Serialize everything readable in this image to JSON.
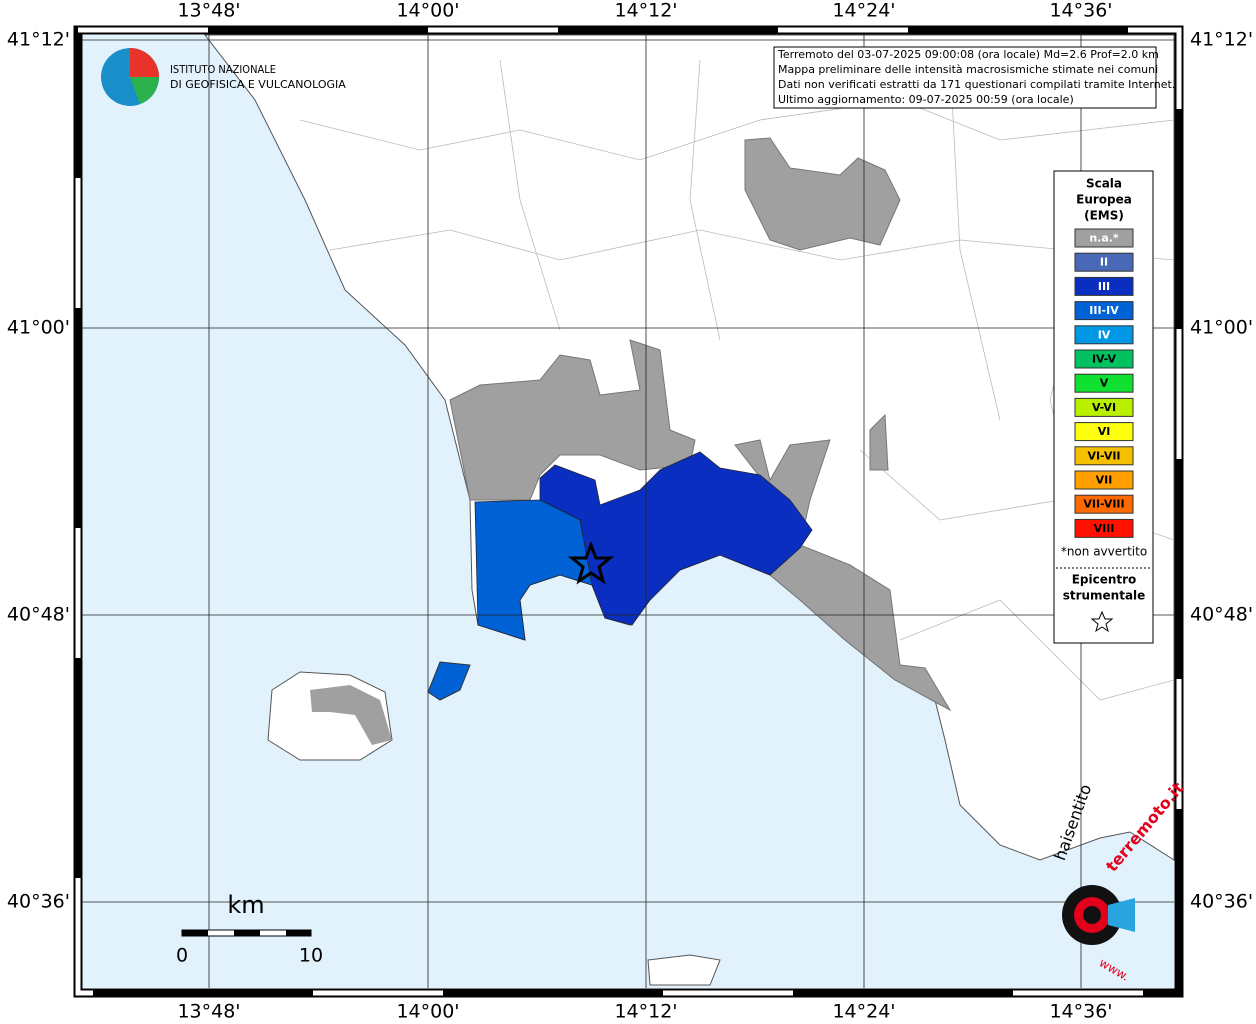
{
  "header": {
    "institute_line1": "ISTITUTO NAZIONALE",
    "institute_line2": "DI GEOFISICA E VULCANOLOGIA"
  },
  "info": {
    "lines": [
      "Terremoto del 03-07-2025 09:00:08 (ora locale) Md=2.6 Prof=2.0 km",
      "Mappa preliminare delle intensità macrosismiche stimate nei comuni",
      "Dati non verificati estratti da 171 questionari compilati tramite Internet.",
      "Ultimo aggiornamento: 09-07-2025 00:59 (ora locale)"
    ]
  },
  "axes": {
    "longitudes": [
      "13°48'",
      "14°00'",
      "14°12'",
      "14°24'",
      "14°36'"
    ],
    "latitudes": [
      "41°12'",
      "41°00'",
      "40°48'",
      "40°36'"
    ]
  },
  "legend": {
    "title": [
      "Scala",
      "Europea",
      "(EMS)"
    ],
    "entries": [
      {
        "label": "n.a.*",
        "color": "#a0a0a0"
      },
      {
        "label": "II",
        "color": "#4a68b8"
      },
      {
        "label": "III",
        "color": "#0a2fc0"
      },
      {
        "label": "III-IV",
        "color": "#0062d4"
      },
      {
        "label": "IV",
        "color": "#0096e6"
      },
      {
        "label": "IV-V",
        "color": "#00c060"
      },
      {
        "label": "V",
        "color": "#10e030"
      },
      {
        "label": "V-VI",
        "color": "#b8f000"
      },
      {
        "label": "VI",
        "color": "#ffff10"
      },
      {
        "label": "VI-VII",
        "color": "#f4c000"
      },
      {
        "label": "VII",
        "color": "#ffa000"
      },
      {
        "label": "VII-VIII",
        "color": "#ff6a00"
      },
      {
        "label": "VIII",
        "color": "#ff1000"
      }
    ],
    "note": "*non avvertito",
    "epicenter_line1": "Epicentro",
    "epicenter_line2": "strumentale"
  },
  "scale_bar": {
    "unit": "km",
    "start": "0",
    "end": "10"
  },
  "badge": {
    "text1": "haisentito",
    "text2": "terremoto.it",
    "text3": "www."
  }
}
